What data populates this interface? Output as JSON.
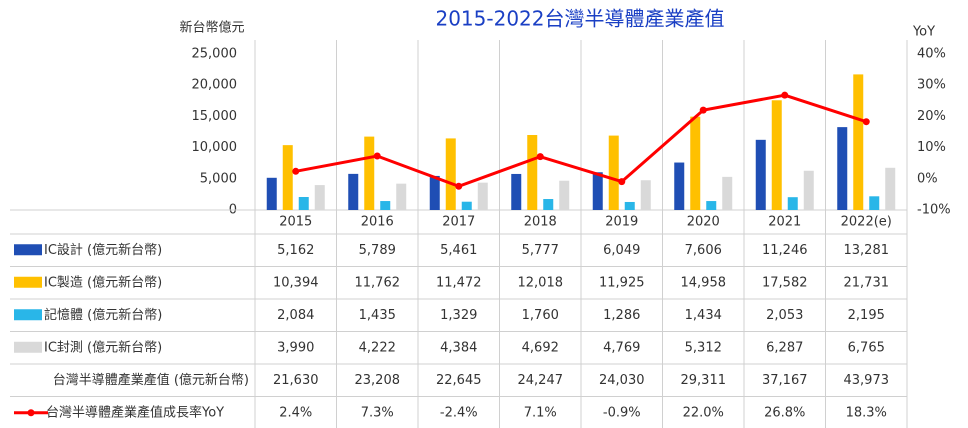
{
  "chart_data": {
    "type": "bar",
    "title": "2015-2022台灣半導體產業產值",
    "y_label": "新台幣億元",
    "y2_label": "YoY",
    "categories": [
      "2015",
      "2016",
      "2017",
      "2018",
      "2019",
      "2020",
      "2021",
      "2022(e)"
    ],
    "ylim": [
      0,
      25000
    ],
    "yticks": [
      0,
      {
        "value": 5000,
        "label": "5,000"
      },
      {
        "value": 10000,
        "label": "10,000"
      },
      {
        "value": 15000,
        "label": "15,000"
      },
      {
        "value": 20000,
        "label": "20,000"
      },
      {
        "value": 25000,
        "label": "25,000"
      }
    ],
    "y2lim": [
      -10,
      40
    ],
    "y2ticks": [
      {
        "value": -10,
        "label": "-10%"
      },
      {
        "value": 0,
        "label": "0%"
      },
      {
        "value": 10,
        "label": "10%"
      },
      {
        "value": 20,
        "label": "20%"
      },
      {
        "value": 30,
        "label": "30%"
      },
      {
        "value": 40,
        "label": "40%"
      }
    ],
    "grid": false,
    "series": [
      {
        "name": "IC設計 (億元新台幣)",
        "color": "#1f4eb4",
        "type": "bar",
        "values": [
          5162,
          5789,
          5461,
          5777,
          6049,
          7606,
          11246,
          13281
        ],
        "value_labels": [
          "5,162",
          "5,789",
          "5,461",
          "5,777",
          "6,049",
          "7,606",
          "11,246",
          "13,281"
        ]
      },
      {
        "name": "IC製造 (億元新台幣)",
        "color": "#ffc000",
        "type": "bar",
        "values": [
          10394,
          11762,
          11472,
          12018,
          11925,
          14958,
          17582,
          21731
        ],
        "value_labels": [
          "10,394",
          "11,762",
          "11,472",
          "12,018",
          "11,925",
          "14,958",
          "17,582",
          "21,731"
        ]
      },
      {
        "name": "記憶體 (億元新台幣)",
        "color": "#29b6e8",
        "type": "bar",
        "values": [
          2084,
          1435,
          1329,
          1760,
          1286,
          1434,
          2053,
          2195
        ],
        "value_labels": [
          "2,084",
          "1,435",
          "1,329",
          "1,760",
          "1,286",
          "1,434",
          "2,053",
          "2,195"
        ]
      },
      {
        "name": "IC封測 (億元新台幣)",
        "color": "#d9d9d9",
        "type": "bar",
        "values": [
          3990,
          4222,
          4384,
          4692,
          4769,
          5312,
          6287,
          6765
        ],
        "value_labels": [
          "3,990",
          "4,222",
          "4,384",
          "4,692",
          "4,769",
          "5,312",
          "6,287",
          "6,765"
        ]
      },
      {
        "name": "台灣半導體產業產值 (億元新台幣)",
        "type": "table",
        "values": [
          21630,
          23208,
          22645,
          24247,
          24030,
          29311,
          37167,
          43973
        ],
        "value_labels": [
          "21,630",
          "23,208",
          "22,645",
          "24,247",
          "24,030",
          "29,311",
          "37,167",
          "43,973"
        ]
      },
      {
        "name": "台灣半導體產業產值成長率YoY",
        "color": "#ff0000",
        "type": "line",
        "axis": "y2",
        "values": [
          2.4,
          7.3,
          -2.4,
          7.1,
          -0.9,
          22.0,
          26.8,
          18.3
        ],
        "value_labels": [
          "2.4%",
          "7.3%",
          "-2.4%",
          "7.1%",
          "-0.9%",
          "22.0%",
          "26.8%",
          "18.3%"
        ]
      }
    ]
  }
}
